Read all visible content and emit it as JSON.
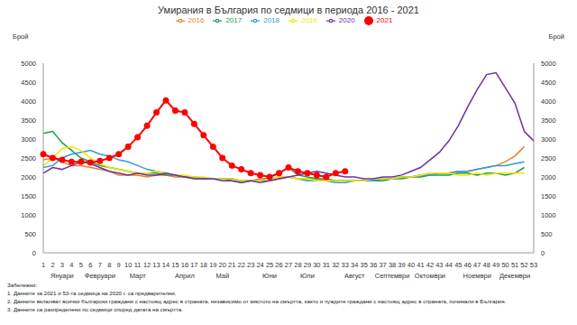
{
  "chart_data": {
    "type": "line",
    "title": "Умирания в България по седмици в периода 2016 - 2021",
    "y_label": "Брой",
    "y2_label": "Брой",
    "categories": [
      1,
      2,
      3,
      4,
      5,
      6,
      7,
      8,
      9,
      10,
      11,
      12,
      13,
      14,
      15,
      16,
      17,
      18,
      19,
      20,
      21,
      22,
      23,
      24,
      25,
      26,
      27,
      28,
      29,
      30,
      31,
      32,
      33,
      34,
      35,
      36,
      37,
      38,
      39,
      40,
      41,
      42,
      43,
      44,
      45,
      46,
      47,
      48,
      49,
      50,
      51,
      52,
      53
    ],
    "month_labels": [
      null,
      null,
      "Януари",
      null,
      null,
      null,
      "Февруари",
      null,
      null,
      null,
      "Март",
      null,
      null,
      null,
      null,
      "Април",
      null,
      null,
      null,
      "Май",
      null,
      null,
      null,
      null,
      "Юни",
      null,
      null,
      null,
      "Юли",
      null,
      null,
      null,
      null,
      "Август",
      null,
      null,
      null,
      "Септември",
      null,
      null,
      null,
      "Октомври",
      null,
      null,
      null,
      null,
      "Ноември",
      null,
      null,
      null,
      "Декември",
      null,
      null
    ],
    "series": [
      {
        "name": "2016",
        "color": "#ed7d31",
        "values": [
          2450,
          2500,
          2400,
          2300,
          2300,
          2250,
          2200,
          2150,
          2050,
          2050,
          2050,
          2000,
          2050,
          2050,
          2000,
          2000,
          1950,
          1950,
          1950,
          1950,
          1950,
          1900,
          1900,
          1950,
          1950,
          2000,
          2000,
          1950,
          1950,
          1950,
          1900,
          1900,
          1900,
          1900,
          1900,
          1900,
          1950,
          1950,
          2000,
          2000,
          2050,
          2100,
          2100,
          2100,
          2150,
          2150,
          2200,
          2250,
          2300,
          2400,
          2550,
          2800,
          null
        ]
      },
      {
        "name": "2017",
        "color": "#1e9c4a",
        "values": [
          3150,
          3200,
          2900,
          2700,
          2500,
          2400,
          2300,
          2250,
          2200,
          2150,
          2100,
          2100,
          2100,
          2050,
          2050,
          2000,
          2000,
          1950,
          1950,
          1950,
          1950,
          1900,
          1900,
          1900,
          2000,
          2100,
          2250,
          2050,
          2000,
          1950,
          1950,
          1900,
          1900,
          1900,
          1900,
          1900,
          1900,
          1950,
          1950,
          2000,
          2000,
          2050,
          2050,
          2050,
          2100,
          2100,
          2050,
          2100,
          2100,
          2050,
          2100,
          2250,
          null
        ]
      },
      {
        "name": "2018",
        "color": "#2e9bd6",
        "values": [
          2250,
          2300,
          2500,
          2600,
          2650,
          2700,
          2600,
          2550,
          2450,
          2400,
          2300,
          2200,
          2150,
          2100,
          2050,
          2000,
          2000,
          1950,
          1950,
          1950,
          1900,
          1850,
          1900,
          1900,
          1900,
          1950,
          2000,
          1950,
          1900,
          1900,
          1900,
          1850,
          1850,
          1900,
          1900,
          1900,
          1950,
          1950,
          2000,
          2000,
          2050,
          2050,
          2100,
          2100,
          2150,
          2150,
          2200,
          2250,
          2300,
          2300,
          2350,
          2400,
          null
        ]
      },
      {
        "name": "2019",
        "color": "#f2e600",
        "values": [
          2300,
          2500,
          2750,
          2800,
          2700,
          2500,
          2350,
          2250,
          2200,
          2150,
          2100,
          2100,
          2150,
          2100,
          2050,
          2050,
          2000,
          2000,
          1950,
          1950,
          1950,
          1900,
          1900,
          1900,
          1950,
          2000,
          2000,
          1950,
          1950,
          1900,
          1900,
          1900,
          1900,
          1900,
          1900,
          1950,
          1950,
          1950,
          2000,
          2000,
          2050,
          2100,
          2100,
          2100,
          2050,
          2050,
          2100,
          2050,
          2100,
          2100,
          2100,
          2100,
          null
        ]
      },
      {
        "name": "2020",
        "color": "#7030a0",
        "values": [
          2100,
          2250,
          2200,
          2300,
          2400,
          2350,
          2250,
          2150,
          2100,
          2050,
          2100,
          2050,
          2050,
          2100,
          2050,
          2000,
          1950,
          1950,
          1950,
          1900,
          1900,
          1850,
          1900,
          1850,
          1900,
          1950,
          2000,
          2050,
          2100,
          2150,
          2100,
          2050,
          2000,
          2000,
          1950,
          1950,
          2000,
          2000,
          2050,
          2150,
          2250,
          2450,
          2650,
          2950,
          3350,
          3850,
          4300,
          4700,
          4750,
          4350,
          3950,
          3200,
          2950
        ]
      },
      {
        "name": "2021",
        "color": "#ff0000",
        "marker": "circle",
        "values": [
          2600,
          2500,
          2450,
          2400,
          2400,
          2380,
          2420,
          2500,
          2600,
          2800,
          3050,
          3350,
          3700,
          4020,
          3750,
          3700,
          3400,
          3100,
          2800,
          2500,
          2300,
          2200,
          2100,
          2050,
          2000,
          2100,
          2250,
          2150,
          2100,
          2050,
          2000,
          2100,
          2150,
          null,
          null,
          null,
          null,
          null,
          null,
          null,
          null,
          null,
          null,
          null,
          null,
          null,
          null,
          null,
          null,
          null,
          null,
          null,
          null
        ]
      }
    ],
    "ylim": [
      0,
      5000
    ],
    "yticks": [
      0,
      500,
      1000,
      1500,
      2000,
      2500,
      3000,
      3500,
      4000,
      4500,
      5000
    ],
    "y2lim": [
      0,
      5000
    ],
    "y2ticks": [
      0,
      500,
      1000,
      1500,
      2000,
      2500,
      3000,
      3500,
      4000,
      4500,
      5000
    ],
    "grid": false,
    "legend": "top",
    "notes_title": "Забележки:",
    "notes": [
      "1. Данните за 2021 и 53-та седмица на 2020 г. са предварителни.",
      "2. Данните включват всички български граждани с настоящ адрес в страната, независимо от мястото на смъртта, както и чуждите граждани с настоящ адрес в страната, починали в България.",
      "3. Данните са разпределени по седмици според датата на смъртта."
    ]
  }
}
